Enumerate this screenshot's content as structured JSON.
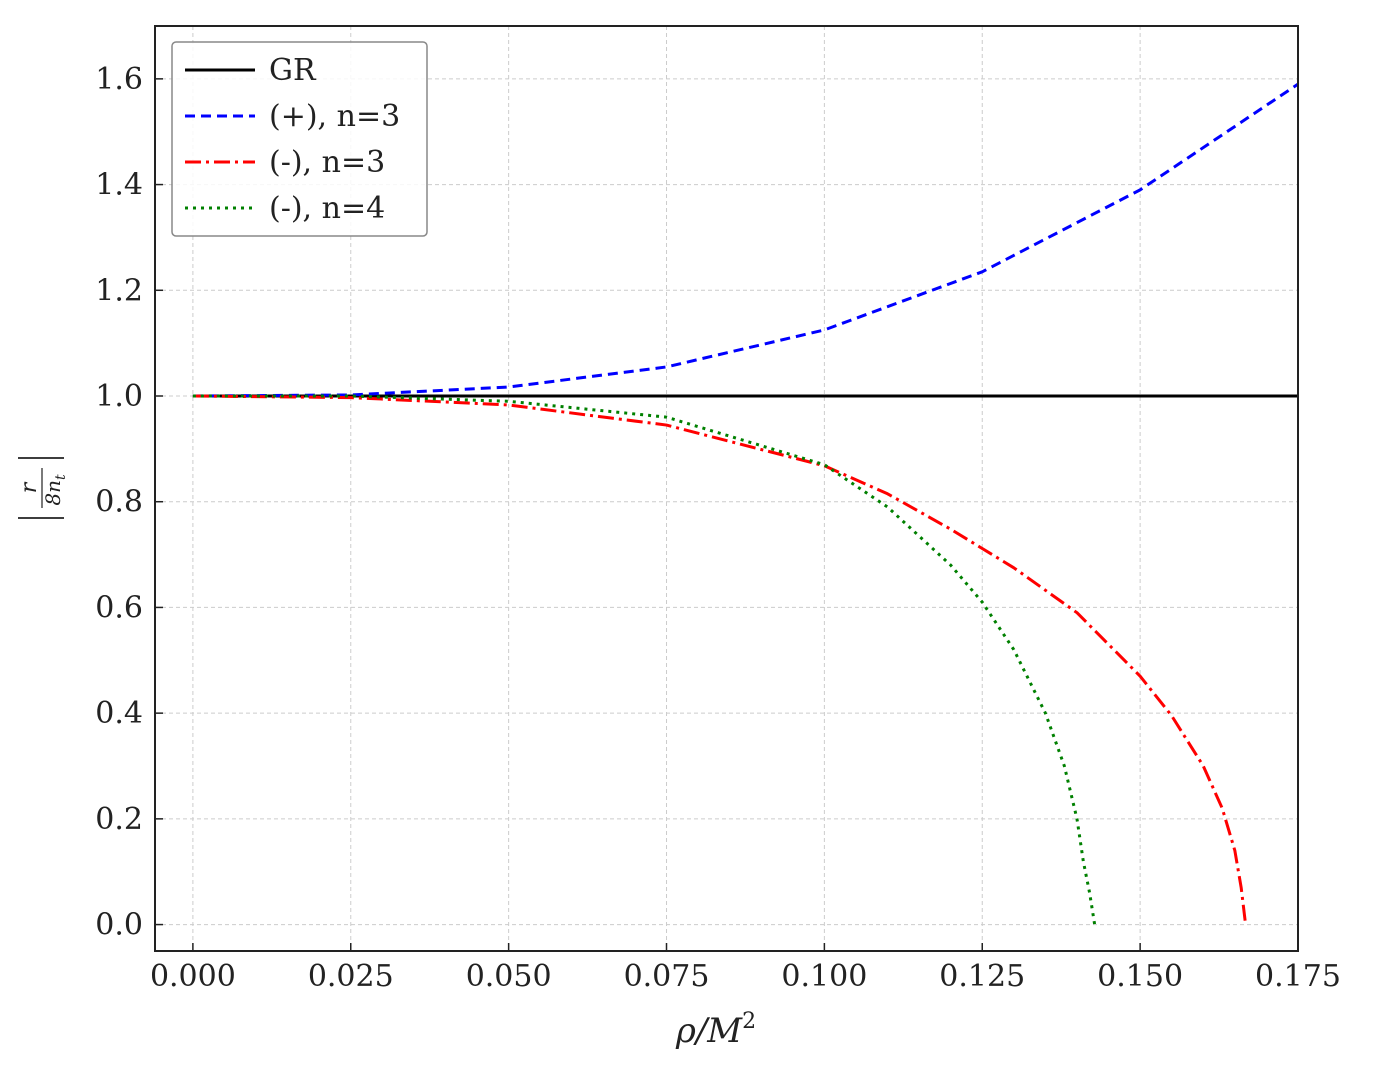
{
  "chart_data": {
    "type": "line",
    "title": "",
    "xlabel": "ρ/M²",
    "ylabel": "|r / 8nₜ|",
    "ylabel_parts": {
      "numerator": "r",
      "denominator": "8n",
      "denominator_sub": "t"
    },
    "xlabel_parts": {
      "base": "ρ/M",
      "sup": "2"
    },
    "xlim": [
      -0.006,
      0.175
    ],
    "ylim": [
      -0.05,
      1.7
    ],
    "xticks": [
      0.0,
      0.025,
      0.05,
      0.075,
      0.1,
      0.125,
      0.15,
      0.175
    ],
    "xtick_labels": [
      "0.000",
      "0.025",
      "0.050",
      "0.075",
      "0.100",
      "0.125",
      "0.150",
      "0.175"
    ],
    "yticks": [
      0.0,
      0.2,
      0.4,
      0.6,
      0.8,
      1.0,
      1.2,
      1.4,
      1.6
    ],
    "ytick_labels": [
      "0.0",
      "0.2",
      "0.4",
      "0.6",
      "0.8",
      "1.0",
      "1.2",
      "1.4",
      "1.6"
    ],
    "grid": true,
    "legend_position": "top-left",
    "series": [
      {
        "name": "GR",
        "color": "#000000",
        "style": "solid",
        "x": [
          0.0,
          0.175
        ],
        "y": [
          1.0,
          1.0
        ]
      },
      {
        "name": "(+), n=3",
        "color": "#0000ff",
        "style": "dashed",
        "x": [
          0.0,
          0.025,
          0.05,
          0.075,
          0.1,
          0.125,
          0.15,
          0.175
        ],
        "y": [
          1.0,
          1.002,
          1.017,
          1.055,
          1.125,
          1.235,
          1.39,
          1.59
        ]
      },
      {
        "name": "(-), n=3",
        "color": "#ff0000",
        "style": "dashdot",
        "x": [
          0.0,
          0.025,
          0.05,
          0.075,
          0.1,
          0.11,
          0.12,
          0.13,
          0.14,
          0.15,
          0.155,
          0.16,
          0.163,
          0.165,
          0.166,
          0.1667
        ],
        "y": [
          1.0,
          0.997,
          0.983,
          0.945,
          0.868,
          0.815,
          0.748,
          0.675,
          0.59,
          0.47,
          0.395,
          0.3,
          0.22,
          0.14,
          0.07,
          0.0
        ]
      },
      {
        "name": "(-), n=4",
        "color": "#008000",
        "style": "dotted",
        "x": [
          0.0,
          0.025,
          0.05,
          0.075,
          0.1,
          0.11,
          0.12,
          0.125,
          0.13,
          0.135,
          0.138,
          0.14,
          0.141,
          0.142,
          0.1428
        ],
        "y": [
          1.0,
          1.0,
          0.99,
          0.96,
          0.87,
          0.79,
          0.68,
          0.61,
          0.52,
          0.4,
          0.3,
          0.2,
          0.12,
          0.06,
          0.0
        ]
      }
    ]
  }
}
